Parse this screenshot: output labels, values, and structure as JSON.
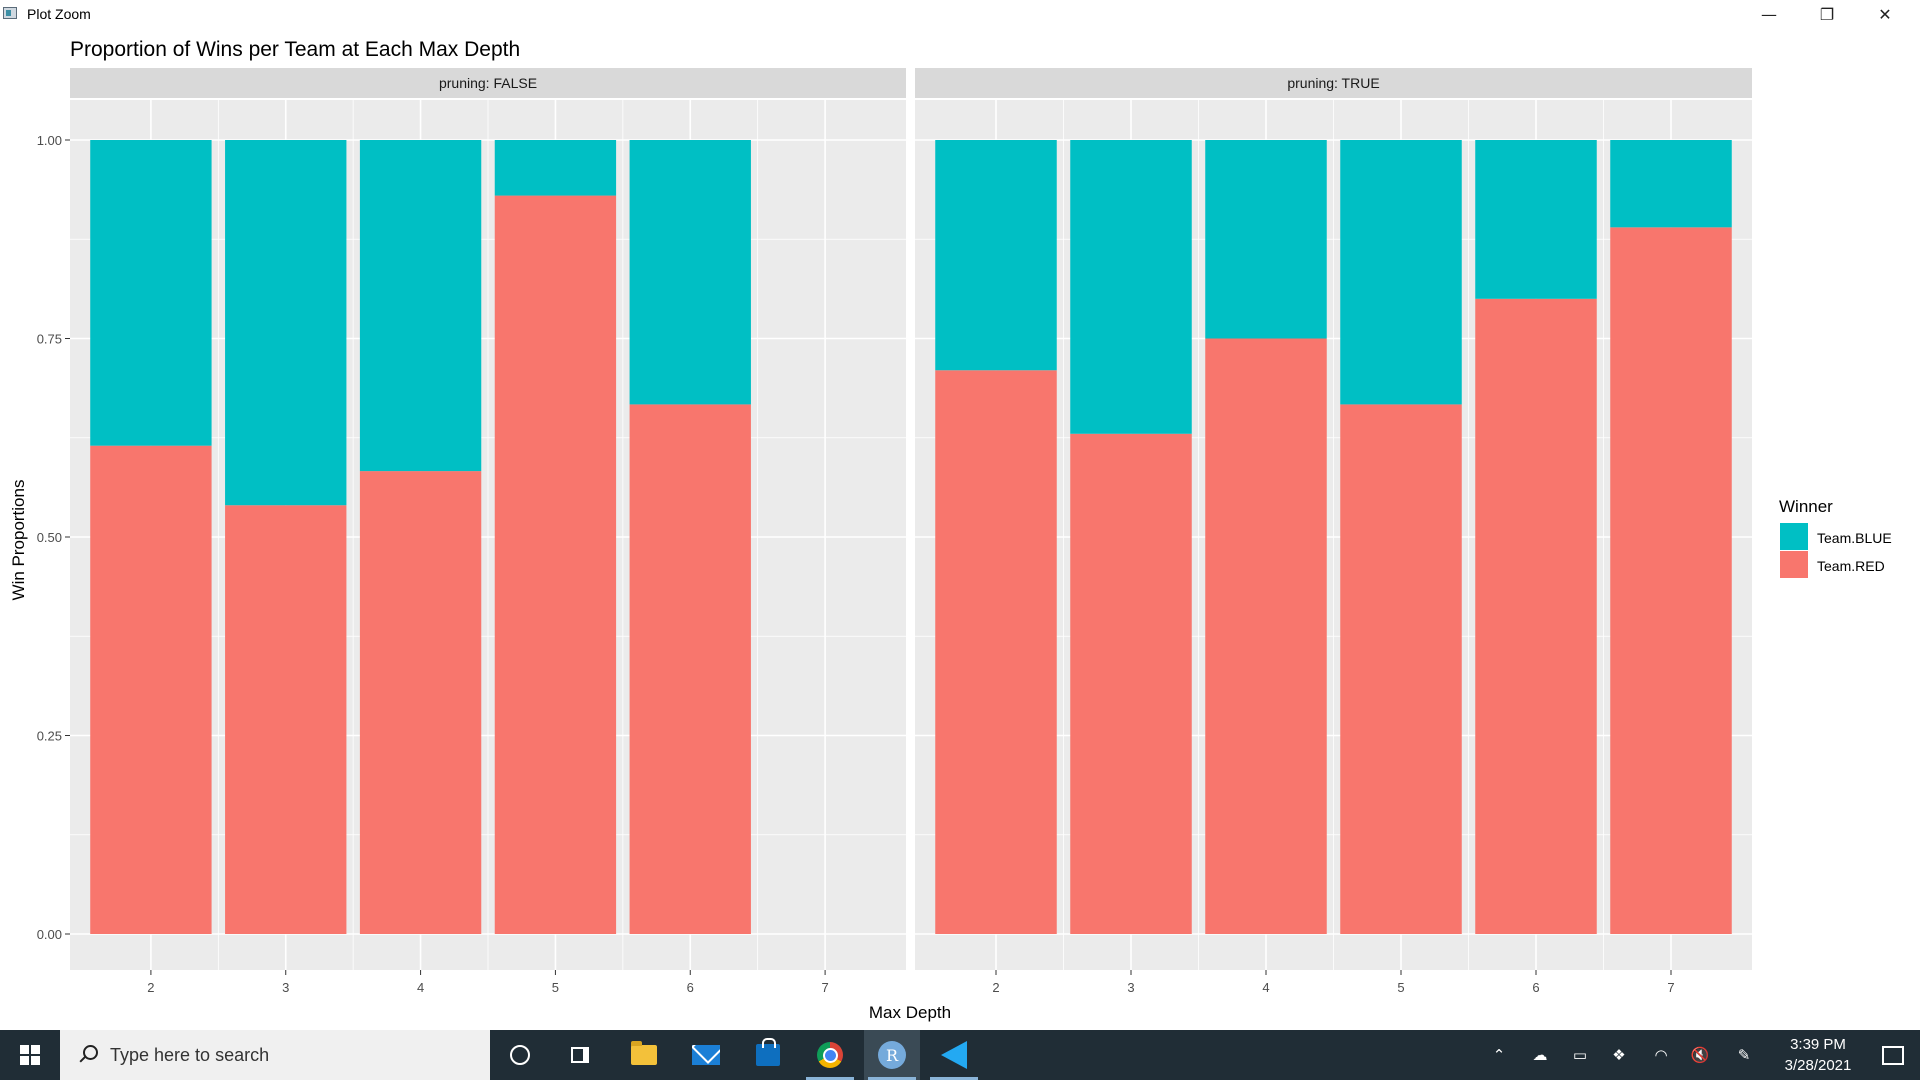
{
  "window": {
    "title": "Plot Zoom",
    "minimize": "—",
    "restore": "❐",
    "close": "✕"
  },
  "chart_data": {
    "type": "bar",
    "stacked": true,
    "title": "Proportion of Wins per Team at Each Max Depth",
    "xlabel": "Max Depth",
    "ylabel": "Win Proportions",
    "ylim": [
      0,
      1
    ],
    "yticks": [
      "0.00",
      "0.25",
      "0.50",
      "0.75",
      "1.00"
    ],
    "xticks": [
      "2",
      "3",
      "4",
      "5",
      "6",
      "7"
    ],
    "grid": true,
    "legend": {
      "title": "Winner",
      "position": "right"
    },
    "colors": {
      "Team.BLUE": "#00BFC4",
      "Team.RED": "#F8766D"
    },
    "facets": [
      {
        "label": "pruning: FALSE",
        "categories": [
          "2",
          "3",
          "4",
          "5",
          "6"
        ],
        "series": [
          {
            "name": "Team.BLUE",
            "values": [
              0.385,
              0.46,
              0.417,
              0.07,
              0.333
            ]
          },
          {
            "name": "Team.RED",
            "values": [
              0.615,
              0.54,
              0.583,
              0.93,
              0.667
            ]
          }
        ]
      },
      {
        "label": "pruning: TRUE",
        "categories": [
          "2",
          "3",
          "4",
          "5",
          "6",
          "7"
        ],
        "series": [
          {
            "name": "Team.BLUE",
            "values": [
              0.29,
              0.37,
              0.25,
              0.333,
              0.2,
              0.11
            ]
          },
          {
            "name": "Team.RED",
            "values": [
              0.71,
              0.63,
              0.75,
              0.667,
              0.8,
              0.89
            ]
          }
        ]
      }
    ]
  },
  "taskbar": {
    "search_placeholder": "Type here to search",
    "r_label": "R",
    "clock_time": "3:39 PM",
    "clock_date": "3/28/2021"
  }
}
